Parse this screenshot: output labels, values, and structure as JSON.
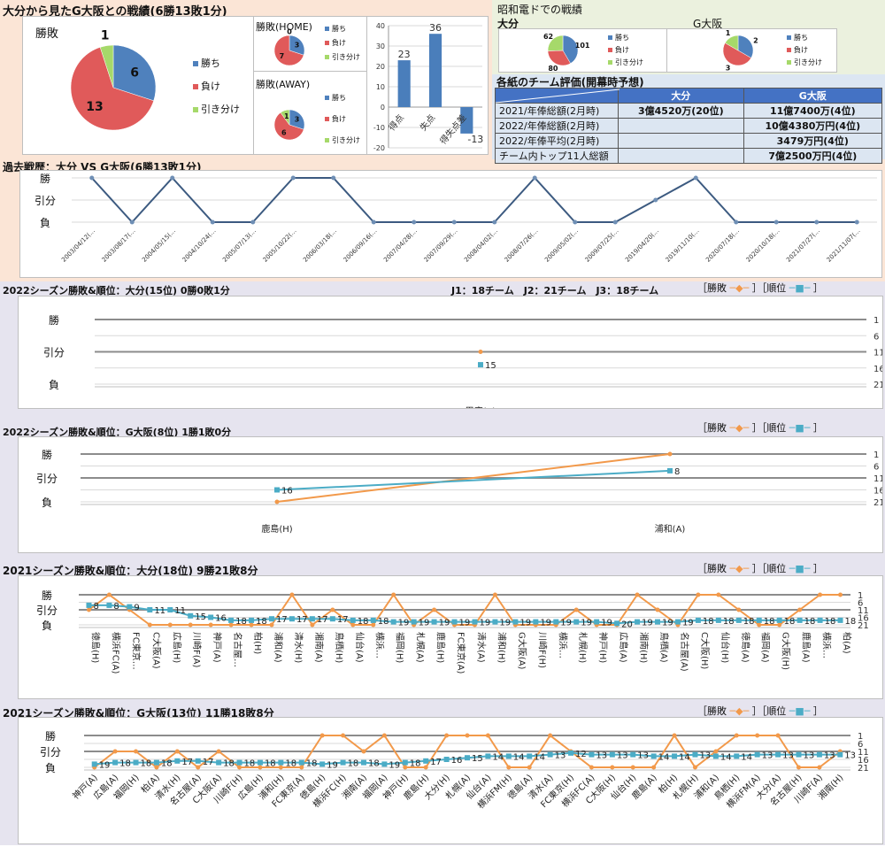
{
  "colors": {
    "win": "#4f81bd",
    "loss": "#e05a5a",
    "draw": "#a6d96a",
    "line_dark": "#3c5a80",
    "result_line": "#f2994a",
    "rank_line": "#4bacc6",
    "bar": "#4a7ebb"
  },
  "legend": {
    "win": "勝ち",
    "loss": "負け",
    "draw": "引き分け",
    "result": "勝敗",
    "rank": "順位",
    "bracket_open": "［",
    "bracket_close": "］"
  },
  "y_result_labels": {
    "win": "勝",
    "draw": "引分",
    "loss": "負"
  },
  "header": {
    "title": "大分から見たG大阪との戦績(6勝13敗1分)",
    "showa_title": "昭和電ドでの戦績",
    "showa_oita": "大分",
    "showa_gamba": "G大阪",
    "eval_title": "各紙のチーム評価(開幕時予想)"
  },
  "eval_table": {
    "columns": [
      "",
      "大分",
      "G大阪"
    ],
    "rows": [
      [
        "2021/年俸総額(2月時)",
        "3億4520万(20位)",
        "11億7400万(4位)"
      ],
      [
        "2022/年俸総額(2月時)",
        "",
        "10億4380万円(4位)"
      ],
      [
        "2022/年俸平均(2月時)",
        "",
        "3479万円(4位)"
      ],
      [
        "チーム内トップ11人総額",
        "",
        "7億2500万円(4位)"
      ]
    ]
  },
  "history_title": "過去戦歴：大分 VS G大阪(6勝13敗1分)",
  "season_note": "J1：18チーム　J2：21チーム　J3：18チーム",
  "chart_data": [
    {
      "id": "pie_total",
      "type": "pie",
      "title": "勝敗",
      "categories": [
        "勝ち",
        "負け",
        "引き分け"
      ],
      "values": [
        6,
        13,
        1
      ]
    },
    {
      "id": "pie_home",
      "type": "pie",
      "title": "勝敗(HOME)",
      "categories": [
        "勝ち",
        "負け",
        "引き分け"
      ],
      "values": [
        3,
        7,
        0
      ]
    },
    {
      "id": "pie_away",
      "type": "pie",
      "title": "勝敗(AWAY)",
      "categories": [
        "勝ち",
        "負け",
        "引き分け"
      ],
      "values": [
        3,
        6,
        1
      ]
    },
    {
      "id": "bar_goals",
      "type": "bar",
      "categories": [
        "得点",
        "失点",
        "得失点差"
      ],
      "values": [
        23,
        36,
        -13
      ],
      "ylim": [
        -20,
        40
      ],
      "yticks": [
        40,
        30,
        20,
        10,
        0,
        -10,
        -20
      ]
    },
    {
      "id": "pie_showa_oita",
      "type": "pie",
      "title": "大分",
      "categories": [
        "勝ち",
        "負け",
        "引き分け"
      ],
      "values": [
        101,
        80,
        62
      ]
    },
    {
      "id": "pie_showa_gamba",
      "type": "pie",
      "title": "G大阪",
      "categories": [
        "勝ち",
        "負け",
        "引き分け"
      ],
      "values": [
        2,
        3,
        1
      ]
    },
    {
      "id": "history",
      "type": "line",
      "title": "過去戦歴：大分 VS G大阪(6勝13敗1分)",
      "x": [
        "2003/04/12(…",
        "2003/08/17(…",
        "2004/05/15(…",
        "2004/10/24(…",
        "2005/07/13(…",
        "2005/10/22(…",
        "2006/03/18(…",
        "2006/09/16(…",
        "2007/04/28(…",
        "2007/09/29(…",
        "2008/04/02(…",
        "2008/07/26(…",
        "2009/05/02(…",
        "2009/07/25(…",
        "2019/04/20(…",
        "2019/11/10(…",
        "2020/07/18(…",
        "2020/10/18(…",
        "2021/07/27(…",
        "2021/11/07(…"
      ],
      "results": [
        "W",
        "L",
        "W",
        "L",
        "L",
        "W",
        "W",
        "L",
        "L",
        "L",
        "L",
        "W",
        "L",
        "L",
        "D",
        "W",
        "L",
        "L",
        "L",
        "L"
      ]
    },
    {
      "id": "oita_2022",
      "type": "line",
      "title": "2022シーズン勝敗&順位：大分(15位) 0勝0敗1分",
      "x": [
        "甲府(A)"
      ],
      "results": [
        "D"
      ],
      "ranks": [
        15
      ],
      "rank_ticks": [
        1,
        6,
        11,
        16,
        21
      ]
    },
    {
      "id": "gamba_2022",
      "type": "line",
      "title": "2022シーズン勝敗&順位：G大阪(8位) 1勝1敗0分",
      "x": [
        "鹿島(H)",
        "浦和(A)"
      ],
      "results": [
        "L",
        "W"
      ],
      "ranks": [
        16,
        8
      ],
      "rank_ticks": [
        1,
        6,
        11,
        16,
        21
      ]
    },
    {
      "id": "oita_2021",
      "type": "line",
      "title": "2021シーズン勝敗&順位：大分(18位) 9勝21敗8分",
      "x": [
        "徳島(H)",
        "横浜FC(A)",
        "FC東京…",
        "C大阪(A)",
        "広島(H)",
        "川崎F(A)",
        "神戸(A)",
        "名古屋…",
        "柏(H)",
        "浦和(A)",
        "清水(H)",
        "湘南(A)",
        "鳥栖(H)",
        "仙台(A)",
        "横浜…",
        "福岡(H)",
        "札幌(A)",
        "鹿島(H)",
        "FC東京(A)",
        "清水(A)",
        "浦和(H)",
        "G大阪(A)",
        "川崎F(H)",
        "横浜…",
        "札幌(H)",
        "神戸(H)",
        "広島(A)",
        "湘南(H)",
        "鳥栖(A)",
        "名古屋(A)",
        "C大阪(H)",
        "仙台(H)",
        "徳島(A)",
        "福岡(A)",
        "G大阪(H)",
        "鹿島(A)",
        "横浜…",
        "柏(A)"
      ],
      "results": [
        "D",
        "W",
        "D",
        "L",
        "L",
        "L",
        "L",
        "L",
        "L",
        "L",
        "W",
        "L",
        "D",
        "L",
        "L",
        "W",
        "L",
        "D",
        "L",
        "L",
        "W",
        "L",
        "L",
        "L",
        "D",
        "L",
        "L",
        "W",
        "D",
        "L",
        "W",
        "W",
        "D",
        "L",
        "L",
        "D",
        "W",
        "W"
      ],
      "ranks": [
        8,
        8,
        9,
        11,
        11,
        15,
        16,
        18,
        18,
        17,
        17,
        17,
        17,
        18,
        18,
        19,
        19,
        19,
        19,
        19,
        19,
        19,
        19,
        19,
        19,
        19,
        20,
        19,
        19,
        19,
        18,
        18,
        18,
        18,
        18,
        18,
        18,
        18
      ],
      "rank_ticks": [
        1,
        6,
        11,
        16,
        21
      ]
    },
    {
      "id": "gamba_2021",
      "type": "line",
      "title": "2021シーズン勝敗&順位：G大阪(13位) 11勝18敗8分",
      "x": [
        "神戸(A)",
        "広島(A)",
        "福岡(H)",
        "柏(A)",
        "清水(H)",
        "名古屋(A)",
        "C大阪(A)",
        "川崎F(H)",
        "広島(H)",
        "浦和(H)",
        "FC東京(A)",
        "徳島(H)",
        "横浜FC(H)",
        "湘南(A)",
        "福岡(A)",
        "神戸(H)",
        "鹿島(H)",
        "大分(H)",
        "札幌(A)",
        "仙台(A)",
        "横浜FM(H)",
        "徳島(A)",
        "清水(A)",
        "FC東京(H)",
        "横浜FC(A)",
        "C大阪(H)",
        "仙台(H)",
        "鹿島(A)",
        "柏(H)",
        "札幌(H)",
        "浦和(A)",
        "鳥栖(H)",
        "横浜FM(A)",
        "大分(A)",
        "名古屋(H)",
        "川崎F(A)",
        "湘南(H)"
      ],
      "results": [
        "L",
        "D",
        "D",
        "L",
        "D",
        "L",
        "D",
        "L",
        "L",
        "L",
        "L",
        "W",
        "W",
        "D",
        "W",
        "L",
        "L",
        "W",
        "W",
        "W",
        "L",
        "L",
        "W",
        "D",
        "L",
        "L",
        "L",
        "L",
        "W",
        "L",
        "D",
        "W",
        "W",
        "W",
        "L",
        "L",
        "D"
      ],
      "ranks": [
        19,
        18,
        18,
        18,
        17,
        17,
        18,
        18,
        18,
        18,
        18,
        19,
        18,
        18,
        19,
        18,
        17,
        16,
        15,
        14,
        14,
        14,
        13,
        12,
        13,
        13,
        13,
        14,
        14,
        13,
        14,
        14,
        13,
        13,
        13,
        13,
        13
      ],
      "rank_ticks": [
        1,
        6,
        11,
        16,
        21
      ]
    }
  ]
}
